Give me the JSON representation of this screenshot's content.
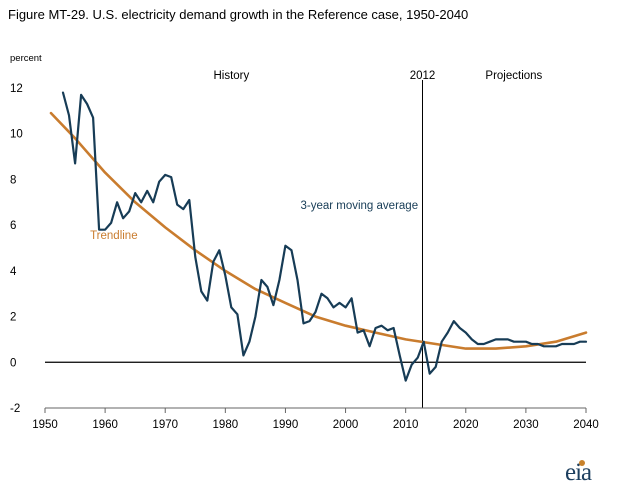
{
  "title": "Figure MT-29. U.S. electricity demand growth in the Reference case, 1950-2040",
  "logo_text": "eia",
  "colors": {
    "moving_average": "#173c56",
    "trendline": "#c97c2e",
    "axis": "#000000"
  },
  "chart_data": {
    "type": "line",
    "ylabel": "percent",
    "xlim": [
      1950,
      2040
    ],
    "ylim": [
      -2,
      12
    ],
    "x_ticks": [
      1950,
      1960,
      1970,
      1980,
      1990,
      2000,
      2010,
      2020,
      2030,
      2040
    ],
    "y_ticks": [
      -2,
      0,
      2,
      4,
      6,
      8,
      10,
      12
    ],
    "grid": false,
    "vertical_marker": {
      "x": 2012.8,
      "label": "2012"
    },
    "regions": [
      {
        "label": "History",
        "x": 1981
      },
      {
        "label": "Projections",
        "x": 2028
      }
    ],
    "series": [
      {
        "name": "3-year moving average",
        "label_at": [
          1992.5,
          6.7
        ],
        "x": [
          1953,
          1954,
          1955,
          1956,
          1957,
          1958,
          1959,
          1960,
          1961,
          1962,
          1963,
          1964,
          1965,
          1966,
          1967,
          1968,
          1969,
          1970,
          1971,
          1972,
          1973,
          1974,
          1975,
          1976,
          1977,
          1978,
          1979,
          1980,
          1981,
          1982,
          1983,
          1984,
          1985,
          1986,
          1987,
          1988,
          1989,
          1990,
          1991,
          1992,
          1993,
          1994,
          1995,
          1996,
          1997,
          1998,
          1999,
          2000,
          2001,
          2002,
          2003,
          2004,
          2005,
          2006,
          2007,
          2008,
          2009,
          2010,
          2011,
          2012,
          2013,
          2014,
          2015,
          2016,
          2017,
          2018,
          2019,
          2020,
          2021,
          2022,
          2023,
          2024,
          2025,
          2026,
          2027,
          2028,
          2029,
          2030,
          2031,
          2032,
          2033,
          2034,
          2035,
          2036,
          2037,
          2038,
          2039,
          2040
        ],
        "values": [
          11.8,
          10.8,
          8.7,
          11.7,
          11.3,
          10.7,
          5.8,
          5.8,
          6.1,
          7.0,
          6.3,
          6.6,
          7.4,
          7.0,
          7.5,
          7.0,
          7.9,
          8.2,
          8.1,
          6.9,
          6.7,
          7.1,
          4.6,
          3.1,
          2.7,
          4.4,
          4.9,
          3.8,
          2.4,
          2.1,
          0.3,
          0.9,
          2.0,
          3.6,
          3.3,
          2.5,
          3.6,
          5.1,
          4.9,
          3.6,
          1.7,
          1.8,
          2.2,
          3.0,
          2.8,
          2.4,
          2.6,
          2.4,
          2.8,
          1.3,
          1.4,
          0.7,
          1.5,
          1.6,
          1.4,
          1.5,
          0.3,
          -0.8,
          -0.1,
          0.2,
          0.9,
          -0.5,
          -0.2,
          0.9,
          1.3,
          1.8,
          1.5,
          1.3,
          1.0,
          0.8,
          0.8,
          0.9,
          1.0,
          1.0,
          1.0,
          0.9,
          0.9,
          0.9,
          0.8,
          0.8,
          0.7,
          0.7,
          0.7,
          0.8,
          0.8,
          0.8,
          0.9,
          0.9
        ]
      },
      {
        "name": "Trendline",
        "label_at": [
          1957.5,
          5.4
        ],
        "x": [
          1951,
          1955,
          1960,
          1965,
          1970,
          1975,
          1980,
          1985,
          1990,
          1995,
          2000,
          2005,
          2010,
          2015,
          2020,
          2025,
          2030,
          2035,
          2040
        ],
        "values": [
          10.9,
          9.8,
          8.3,
          7.0,
          5.9,
          4.9,
          4.0,
          3.2,
          2.6,
          2.0,
          1.6,
          1.3,
          1.0,
          0.8,
          0.6,
          0.6,
          0.7,
          0.9,
          1.3
        ]
      }
    ]
  }
}
